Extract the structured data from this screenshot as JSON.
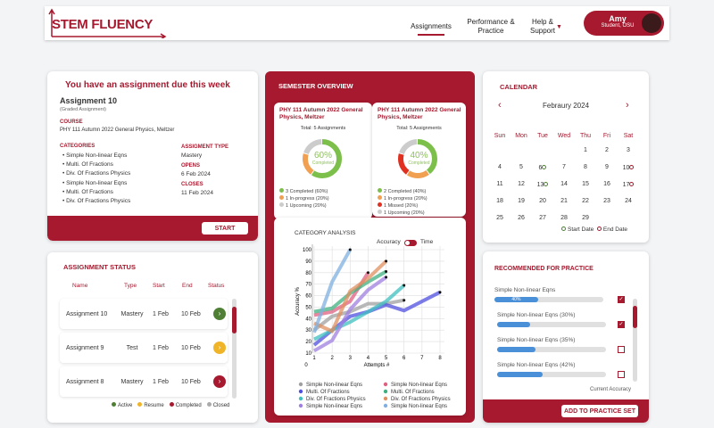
{
  "header": {
    "logo": "STEM FLUENCY",
    "nav": [
      {
        "label": "Assignments",
        "active": true
      },
      {
        "label": "Performance & Practice"
      },
      {
        "label": "Help & Support"
      }
    ],
    "user": {
      "name": "Amy",
      "role": "Student, OSU"
    }
  },
  "due": {
    "title": "You have an assignment due this week",
    "name": "Assignment 10",
    "subtitle": "(Graded Assignment)",
    "course_label": "COURSE",
    "course": "PHY 111 Autumn 2022 General Physics, Meltzer",
    "categories_label": "CATEGORIES",
    "categories": [
      "Simple Non-linear Eqns",
      "Multi. Of Fractions",
      "Div. Of Fractions Physics",
      "Simple Non-linear Eqns",
      "Multi. Of Fractions",
      "Div. Of Fractions Physics"
    ],
    "type_label": "ASSIGMENT TYPE",
    "type": "Mastery",
    "opens_label": "OPENS",
    "opens": "6 Feb 2024",
    "closes_label": "CLOSES",
    "closes": "11 Feb 2024",
    "start": "START"
  },
  "status": {
    "title": "ASSIGNMENT STATUS",
    "columns": [
      "Name",
      "Type",
      "Start",
      "End",
      "Status"
    ],
    "rows": [
      {
        "name": "Assignment 10",
        "type": "Mastery",
        "start": "1 Feb",
        "end": "10 Feb",
        "status": "Active",
        "color": "#4f7f35"
      },
      {
        "name": "Assignment 9",
        "type": "Test",
        "start": "1 Feb",
        "end": "10 Feb",
        "status": "Resume",
        "color": "#f0b429"
      },
      {
        "name": "Assignment 8",
        "type": "Mastery",
        "start": "1 Feb",
        "end": "10 Feb",
        "status": "Completed",
        "color": "#a6192e"
      }
    ],
    "legend": [
      {
        "label": "Active",
        "color": "#4f7f35"
      },
      {
        "label": "Resume",
        "color": "#f0b429"
      },
      {
        "label": "Completed",
        "color": "#a6192e"
      },
      {
        "label": "Closed",
        "color": "#aaaaaa"
      }
    ]
  },
  "overview": {
    "title": "SEMESTER OVERVIEW",
    "courses": [
      {
        "name": "PHY 111 Autumn 2022 General Physics, Meltzer",
        "total": "Total: 5 Assignments",
        "percent": "60%",
        "completed_label": "Completed",
        "legend": [
          {
            "label": "3 Completed (60%)",
            "color": "#7cc04b",
            "value": 60
          },
          {
            "label": "1 In-progress (20%)",
            "color": "#f0a050",
            "value": 20
          },
          {
            "label": "1 Upcoming (20%)",
            "color": "#cccccc",
            "value": 20
          }
        ]
      },
      {
        "name": "PHY 111 Autumn 2022 General Physics, Meltzer",
        "total": "Total: 5 Assignments",
        "percent": "40%",
        "completed_label": "Completed",
        "legend": [
          {
            "label": "2 Completed (40%)",
            "color": "#7cc04b",
            "value": 40
          },
          {
            "label": "1 In-progress (20%)",
            "color": "#f0a050",
            "value": 20
          },
          {
            "label": "1 Missed (20%)",
            "color": "#e03020",
            "value": 20
          },
          {
            "label": "1 Upcoming (20%)",
            "color": "#cccccc",
            "value": 20
          }
        ]
      }
    ]
  },
  "category": {
    "title": "CATEGORY ANALYSIS",
    "toggle_left": "Accuracy",
    "toggle_right": "Time"
  },
  "chart_data": {
    "type": "line",
    "xlabel": "Attempts #",
    "ylabel": "Accuracy %",
    "xlim": [
      0,
      8
    ],
    "ylim": [
      0,
      100
    ],
    "xticks": [
      1,
      2,
      3,
      4,
      5,
      6,
      7,
      8
    ],
    "yticks": [
      10,
      20,
      30,
      40,
      50,
      60,
      70,
      80,
      90,
      100
    ],
    "origin_label": "0",
    "grid": true,
    "legend": "bottom",
    "series": [
      {
        "name": "Simple Non-linear Eqns",
        "color": "#a0a0a0",
        "x": [
          1,
          2,
          3,
          4,
          5,
          6
        ],
        "y": [
          30,
          42,
          46,
          53,
          53,
          56
        ]
      },
      {
        "name": "Simple Non-linear Eqns",
        "color": "#e06080",
        "x": [
          1,
          2,
          3,
          4
        ],
        "y": [
          43,
          46,
          55,
          80
        ]
      },
      {
        "name": "Multi. Of Fractions",
        "color": "#5050e0",
        "x": [
          1,
          2,
          3,
          4,
          5,
          6,
          8
        ],
        "y": [
          17,
          30,
          42,
          46,
          52,
          47,
          63
        ]
      },
      {
        "name": "Multi. Of Fractions",
        "color": "#40b080",
        "x": [
          1,
          2,
          3,
          4,
          5
        ],
        "y": [
          46,
          49,
          62,
          72,
          81
        ]
      },
      {
        "name": "Div. Of Fractions Physics",
        "color": "#40c0c0",
        "x": [
          1,
          2,
          3,
          4,
          5,
          6
        ],
        "y": [
          22,
          30,
          37,
          46,
          55,
          69
        ]
      },
      {
        "name": "Div. Of Fractions Physics",
        "color": "#e09060",
        "x": [
          1,
          2,
          3,
          4,
          5
        ],
        "y": [
          36,
          29,
          64,
          75,
          90
        ]
      },
      {
        "name": "Simple Non-linear Eqns",
        "color": "#a080e0",
        "x": [
          1,
          2,
          3,
          4,
          5
        ],
        "y": [
          12,
          21,
          48,
          65,
          76
        ]
      },
      {
        "name": "Simple Non-linear Eqns",
        "color": "#80b0e0",
        "x": [
          1,
          2,
          3
        ],
        "y": [
          28,
          72,
          100
        ]
      }
    ]
  },
  "calendar": {
    "title": "CALENDAR",
    "month": "Febraury 2024",
    "days": [
      "Sun",
      "Mon",
      "Tue",
      "Wed",
      "Thu",
      "Fri",
      "Sat"
    ],
    "weeks": [
      [
        "",
        "",
        "",
        "",
        "1",
        "2",
        "3"
      ],
      [
        "4",
        "5",
        "6",
        "7",
        "8",
        "9",
        "10"
      ],
      [
        "11",
        "12",
        "13",
        "14",
        "15",
        "16",
        "17"
      ],
      [
        "18",
        "19",
        "20",
        "21",
        "22",
        "23",
        "24"
      ],
      [
        "25",
        "26",
        "27",
        "28",
        "29",
        "",
        ""
      ]
    ],
    "start_dates": [
      "6",
      "13"
    ],
    "end_dates": [
      "10",
      "17"
    ],
    "legend_start": "Start Date",
    "legend_end": "End Date"
  },
  "practice": {
    "title": "RECOMMENDED FOR PRACTICE",
    "items": [
      {
        "label": "Simple Non-linear Eqns",
        "value": 40,
        "bar_label": "40%",
        "checked": true
      },
      {
        "label": "Simple Non-linear Eqns (30%)",
        "value": 30,
        "checked": true
      },
      {
        "label": "Simple Non-linear Eqns (35%)",
        "value": 35,
        "checked": false
      },
      {
        "label": "Simple Non-linear Eqns (42%)",
        "value": 42,
        "checked": false
      }
    ],
    "footer_label": "Current Accuracy",
    "button": "ADD TO PRACTICE SET"
  }
}
